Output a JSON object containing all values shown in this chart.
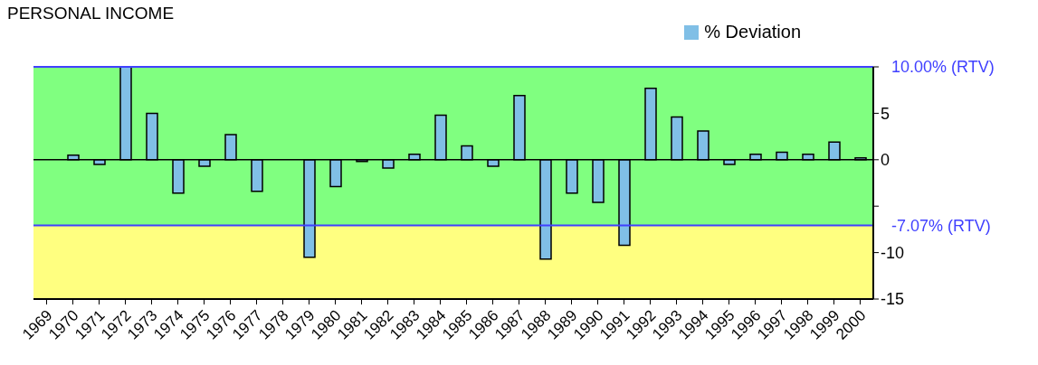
{
  "chart_data": {
    "type": "bar",
    "title": "PERSONAL INCOME",
    "categories": [
      "1969",
      "1970",
      "1971",
      "1972",
      "1973",
      "1974",
      "1975",
      "1976",
      "1977",
      "1978",
      "1979",
      "1980",
      "1981",
      "1982",
      "1983",
      "1984",
      "1985",
      "1986",
      "1987",
      "1988",
      "1989",
      "1990",
      "1991",
      "1992",
      "1993",
      "1994",
      "1995",
      "1996",
      "1997",
      "1998",
      "1999",
      "2000"
    ],
    "series": [
      {
        "name": "% Deviation",
        "color": "#80bfe6",
        "values": [
          0,
          0.5,
          -0.5,
          10,
          5.0,
          -3.6,
          -0.7,
          2.7,
          -3.4,
          0,
          -10.5,
          -2.9,
          -0.2,
          -0.9,
          0.6,
          4.8,
          1.5,
          -0.7,
          6.9,
          -10.7,
          -3.6,
          -4.6,
          -9.2,
          7.7,
          4.6,
          3.1,
          -0.5,
          0.6,
          0.8,
          0.6,
          1.9,
          0.2
        ]
      }
    ],
    "ylim": [
      -15,
      10
    ],
    "yticks": [
      -15,
      -10,
      {
        "value": -5,
        "label": null
      },
      0,
      5,
      {
        "value": 10,
        "label": null
      }
    ],
    "ref_lines": [
      {
        "axis": "y",
        "value": 10,
        "label": "10.00% (RTV)",
        "color": "#4040ff"
      },
      {
        "axis": "y",
        "value": -7.07,
        "label": "-7.07% (RTV)",
        "color": "#4040ff"
      }
    ],
    "bands": [
      {
        "axis": "y",
        "from": -7.07,
        "to": 10,
        "color": "#80ff80"
      },
      {
        "axis": "y",
        "from": -15,
        "to": -7.07,
        "color": "#ffff80"
      }
    ],
    "legend": "top right"
  }
}
